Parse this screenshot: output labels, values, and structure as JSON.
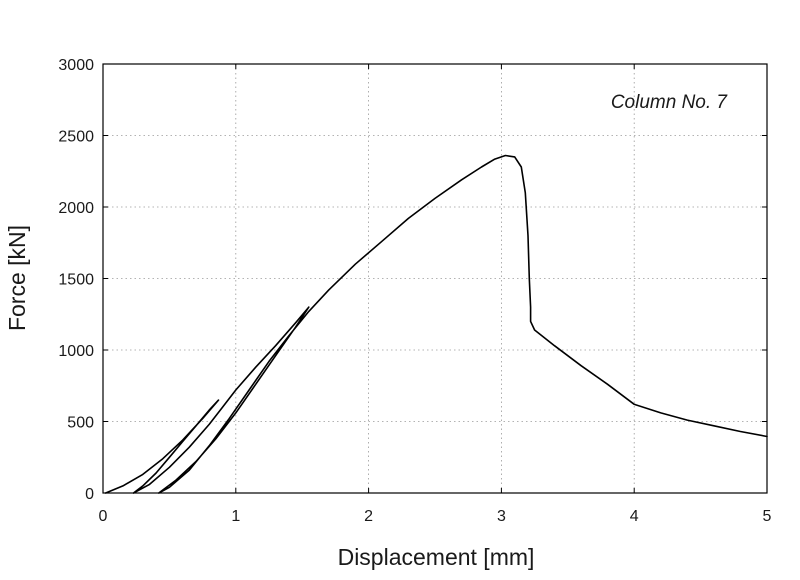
{
  "chart_data": {
    "type": "line",
    "title": "",
    "annotation": "Column No. 7",
    "xlabel": "Displacement  [mm]",
    "ylabel": "Force  [kN]",
    "xlim": [
      0,
      5
    ],
    "ylim": [
      0,
      3000
    ],
    "xticks": [
      0,
      1,
      2,
      3,
      4,
      5
    ],
    "yticks": [
      0,
      500,
      1000,
      1500,
      2000,
      2500,
      3000
    ],
    "grid": true,
    "legend": "none",
    "line_color": "#000000",
    "series": [
      {
        "points": [
          [
            0.02,
            0
          ],
          [
            0.15,
            50
          ],
          [
            0.3,
            130
          ],
          [
            0.45,
            240
          ],
          [
            0.6,
            370
          ],
          [
            0.75,
            520
          ],
          [
            0.87,
            650
          ],
          [
            0.8,
            580
          ],
          [
            0.7,
            470
          ],
          [
            0.6,
            360
          ],
          [
            0.5,
            250
          ],
          [
            0.4,
            140
          ],
          [
            0.3,
            50
          ],
          [
            0.23,
            0
          ],
          [
            0.35,
            60
          ],
          [
            0.5,
            180
          ],
          [
            0.65,
            320
          ],
          [
            0.8,
            480
          ],
          [
            0.9,
            600
          ],
          [
            1.0,
            720
          ],
          [
            1.15,
            880
          ],
          [
            1.3,
            1030
          ],
          [
            1.45,
            1190
          ],
          [
            1.55,
            1300
          ],
          [
            1.45,
            1160
          ],
          [
            1.3,
            960
          ],
          [
            1.15,
            760
          ],
          [
            1.0,
            560
          ],
          [
            0.85,
            380
          ],
          [
            0.7,
            220
          ],
          [
            0.55,
            90
          ],
          [
            0.42,
            0
          ],
          [
            0.5,
            40
          ],
          [
            0.65,
            160
          ],
          [
            0.8,
            330
          ],
          [
            0.95,
            520
          ],
          [
            1.1,
            720
          ],
          [
            1.25,
            920
          ],
          [
            1.4,
            1100
          ],
          [
            1.55,
            1270
          ],
          [
            1.7,
            1420
          ],
          [
            1.9,
            1600
          ],
          [
            2.1,
            1760
          ],
          [
            2.3,
            1920
          ],
          [
            2.5,
            2060
          ],
          [
            2.7,
            2190
          ],
          [
            2.85,
            2280
          ],
          [
            2.95,
            2335
          ],
          [
            3.03,
            2360
          ],
          [
            3.1,
            2350
          ],
          [
            3.15,
            2280
          ],
          [
            3.18,
            2100
          ],
          [
            3.2,
            1800
          ],
          [
            3.21,
            1500
          ],
          [
            3.22,
            1300
          ],
          [
            3.22,
            1200
          ],
          [
            3.25,
            1140
          ],
          [
            3.4,
            1030
          ],
          [
            3.6,
            890
          ],
          [
            3.8,
            760
          ],
          [
            3.9,
            690
          ],
          [
            4.0,
            620
          ],
          [
            4.2,
            560
          ],
          [
            4.4,
            510
          ],
          [
            4.6,
            470
          ],
          [
            4.8,
            430
          ],
          [
            5.0,
            395
          ]
        ]
      }
    ]
  }
}
